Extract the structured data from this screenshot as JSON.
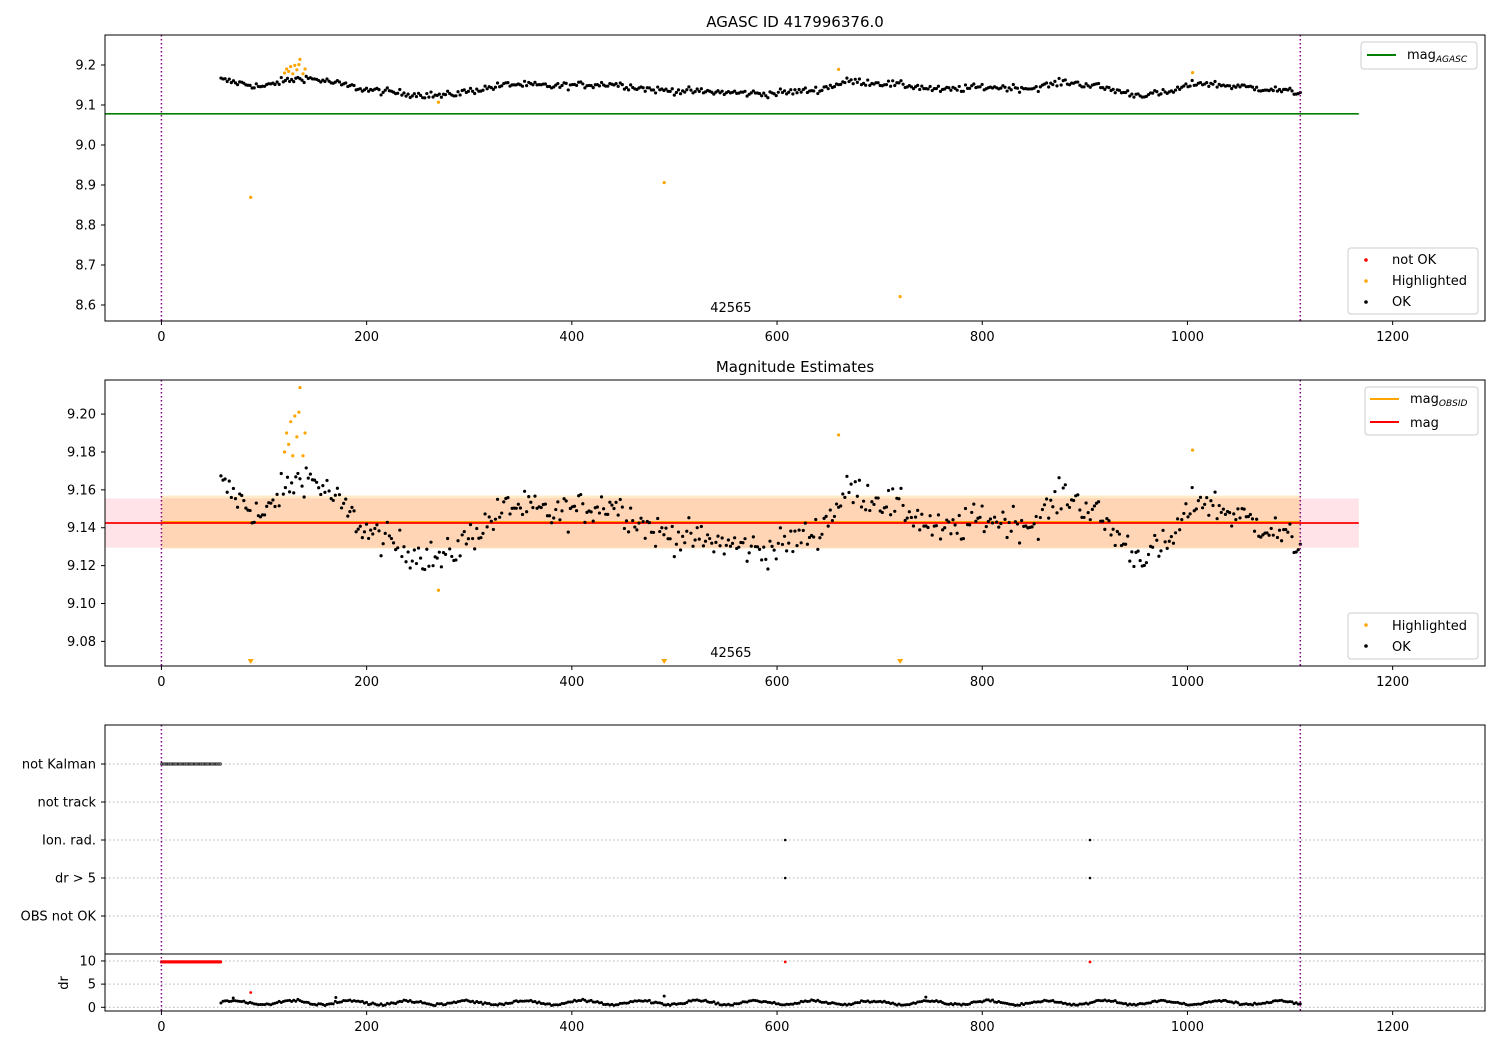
{
  "chart_data": [
    {
      "type": "scatter",
      "title": "AGASC ID 417996376.0",
      "xlim": [
        -55,
        1290
      ],
      "ylim": [
        8.56,
        9.275
      ],
      "x_ticks": [
        0,
        200,
        400,
        600,
        800,
        1000,
        1200
      ],
      "y_ticks": [
        {
          "v": 8.6,
          "label": "8.6"
        },
        {
          "v": 8.7,
          "label": "8.7"
        },
        {
          "v": 8.8,
          "label": "8.8"
        },
        {
          "v": 8.9,
          "label": "8.9"
        },
        {
          "v": 9.0,
          "label": "9.0"
        },
        {
          "v": 9.1,
          "label": "9.1"
        },
        {
          "v": 9.2,
          "label": "9.2"
        }
      ],
      "vlines": [
        0,
        1110
      ],
      "hline": {
        "y": 9.078,
        "x0": -55,
        "x1": 1167,
        "color": "#008000"
      },
      "obsid_label": {
        "text": "42565",
        "x": 555
      },
      "ok_series": {
        "x_start": 58,
        "x_end": 1110,
        "n": 520,
        "base": 9.143,
        "waves": [
          [
            58,
            9.163
          ],
          [
            80,
            9.153
          ],
          [
            100,
            9.145
          ],
          [
            115,
            9.158
          ],
          [
            140,
            9.168
          ],
          [
            160,
            9.16
          ],
          [
            200,
            9.138
          ],
          [
            240,
            9.128
          ],
          [
            275,
            9.123
          ],
          [
            300,
            9.135
          ],
          [
            340,
            9.152
          ],
          [
            380,
            9.147
          ],
          [
            440,
            9.153
          ],
          [
            480,
            9.138
          ],
          [
            530,
            9.133
          ],
          [
            590,
            9.128
          ],
          [
            640,
            9.138
          ],
          [
            670,
            9.16
          ],
          [
            700,
            9.155
          ],
          [
            730,
            9.148
          ],
          [
            760,
            9.137
          ],
          [
            800,
            9.145
          ],
          [
            850,
            9.142
          ],
          [
            880,
            9.158
          ],
          [
            910,
            9.148
          ],
          [
            950,
            9.125
          ],
          [
            980,
            9.13
          ],
          [
            1010,
            9.156
          ],
          [
            1040,
            9.148
          ],
          [
            1080,
            9.14
          ],
          [
            1110,
            9.13
          ]
        ],
        "noise": 0.008
      },
      "highlighted_points": [
        [
          87,
          8.869
        ],
        [
          120,
          9.18
        ],
        [
          122,
          9.19
        ],
        [
          124,
          9.184
        ],
        [
          126,
          9.196
        ],
        [
          128,
          9.178
        ],
        [
          130,
          9.199
        ],
        [
          132,
          9.188
        ],
        [
          134,
          9.201
        ],
        [
          135,
          9.214
        ],
        [
          138,
          9.178
        ],
        [
          140,
          9.19
        ],
        [
          270,
          9.107
        ],
        [
          490,
          8.906
        ],
        [
          660,
          9.189
        ],
        [
          720,
          8.621
        ],
        [
          1005,
          9.181
        ]
      ],
      "legend_lines": [
        {
          "label": "mag",
          "sub": "AGASC",
          "color": "#008000"
        }
      ],
      "legend_markers": [
        {
          "label": "not OK",
          "color": "#ff0000"
        },
        {
          "label": "Highlighted",
          "color": "#ffa500"
        },
        {
          "label": "OK",
          "color": "#000000"
        }
      ]
    },
    {
      "type": "scatter",
      "title": "Magnitude Estimates",
      "xlim": [
        -55,
        1290
      ],
      "ylim": [
        9.067,
        9.218
      ],
      "x_ticks": [
        0,
        200,
        400,
        600,
        800,
        1000,
        1200
      ],
      "y_ticks": [
        {
          "v": 9.08,
          "label": "9.08"
        },
        {
          "v": 9.1,
          "label": "9.10"
        },
        {
          "v": 9.12,
          "label": "9.12"
        },
        {
          "v": 9.14,
          "label": "9.14"
        },
        {
          "v": 9.16,
          "label": "9.16"
        },
        {
          "v": 9.18,
          "label": "9.18"
        },
        {
          "v": 9.2,
          "label": "9.20"
        }
      ],
      "vlines": [
        0,
        1110
      ],
      "mag_line": {
        "y": 9.1425,
        "x0": -55,
        "x1": 1167,
        "color": "#ff0000"
      },
      "mag_band": {
        "y0": 9.1295,
        "y1": 9.1555,
        "x0": -55,
        "x1": 1167,
        "color": "#ffc0cb"
      },
      "obsid_band": {
        "y0": 9.129,
        "y1": 9.157,
        "x0": 0,
        "x1": 1110,
        "color": "#ffa500"
      },
      "obsid_line": {
        "y": 9.143,
        "x0": 0,
        "x1": 1110,
        "color": "#ffa500"
      },
      "obsid_label": {
        "text": "42565",
        "x": 555
      },
      "down_arrows_x": [
        87,
        490,
        720
      ],
      "legend_lines": [
        {
          "label": "mag",
          "sub": "OBSID",
          "color": "#ffa500"
        },
        {
          "label": "mag",
          "sub": "",
          "color": "#ff0000"
        }
      ],
      "legend_markers": [
        {
          "label": "Highlighted",
          "color": "#ffa500"
        },
        {
          "label": "OK",
          "color": "#000000"
        }
      ]
    },
    {
      "type": "scatter",
      "title": "",
      "xlim": [
        -55,
        1290
      ],
      "x_ticks": [
        0,
        200,
        400,
        600,
        800,
        1000,
        1200
      ],
      "vlines": [
        0,
        1110
      ],
      "flag_rows": [
        "not Kalman",
        "not track",
        "Ion. rad.",
        "dr > 5",
        "OBS not OK"
      ],
      "flag_points": {
        "not Kalman": {
          "x_start": 0,
          "x_end": 58,
          "step": 1.2
        },
        "not track": [],
        "Ion. rad.": [
          608,
          905
        ],
        "dr > 5": [
          608,
          905
        ],
        "OBS not OK": []
      },
      "dr": {
        "ylabel": "dr",
        "ylim": [
          -0.8,
          11.5
        ],
        "y_ticks": [
          {
            "v": 0,
            "label": "0"
          },
          {
            "v": 5,
            "label": "5"
          },
          {
            "v": 10,
            "label": "10"
          }
        ],
        "red_clipped": {
          "x_start": 0,
          "x_end": 58,
          "step": 1.2,
          "y": 9.8
        },
        "red_points": [
          [
            608,
            9.8
          ],
          [
            905,
            9.8
          ],
          [
            87,
            3.2
          ]
        ],
        "series": {
          "x_start": 58,
          "x_end": 1110,
          "n": 520,
          "base": 1.0,
          "amp": 0.7
        },
        "spikes": [
          [
            70,
            2.0
          ],
          [
            170,
            2.1
          ],
          [
            490,
            2.4
          ],
          [
            745,
            2.2
          ]
        ]
      }
    }
  ]
}
